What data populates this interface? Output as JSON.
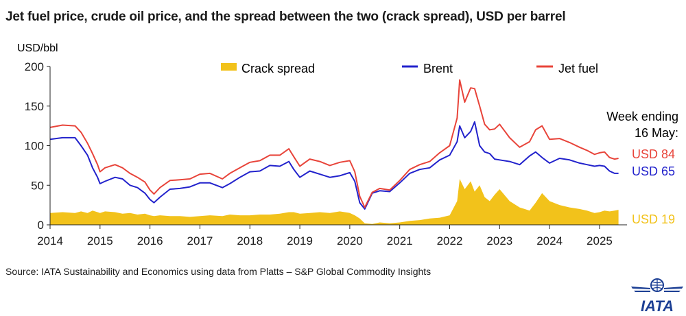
{
  "title": "Jet fuel price, crude oil price, and the spread between the two (crack spread), USD per barrel",
  "source": "Source: IATA Sustainability and Economics using data from Platts – S&P Global Commodity Insights",
  "logo_text": "IATA",
  "colors": {
    "crack": "#f2c21b",
    "brent": "#2222cc",
    "jet": "#e8443a",
    "axis": "#222222"
  },
  "chart_data": {
    "type": "line",
    "ylabel": "USD/bbl",
    "ylim": [
      0,
      200
    ],
    "yticks": [
      0,
      50,
      100,
      150,
      200
    ],
    "xlim": [
      2014,
      2025.55
    ],
    "xticks": [
      "2014",
      "2015",
      "2016",
      "2017",
      "2018",
      "2019",
      "2020",
      "2021",
      "2022",
      "2023",
      "2024",
      "2025"
    ],
    "grid": false,
    "legend_position": "top",
    "annotation": {
      "line1": "Week ending",
      "line2": "16 May:"
    },
    "end_labels": {
      "jet": "USD 84",
      "brent": "USD 65",
      "crack": "USD 19"
    },
    "x": [
      2014.0,
      2014.25,
      2014.5,
      2014.62,
      2014.75,
      2014.85,
      2014.95,
      2015.0,
      2015.1,
      2015.3,
      2015.45,
      2015.6,
      2015.75,
      2015.9,
      2016.0,
      2016.08,
      2016.2,
      2016.4,
      2016.6,
      2016.8,
      2017.0,
      2017.2,
      2017.45,
      2017.6,
      2017.8,
      2018.0,
      2018.2,
      2018.4,
      2018.6,
      2018.78,
      2018.88,
      2019.0,
      2019.2,
      2019.4,
      2019.6,
      2019.8,
      2020.0,
      2020.1,
      2020.2,
      2020.3,
      2020.45,
      2020.6,
      2020.8,
      2021.0,
      2021.2,
      2021.4,
      2021.6,
      2021.8,
      2022.0,
      2022.15,
      2022.2,
      2022.3,
      2022.42,
      2022.5,
      2022.6,
      2022.7,
      2022.8,
      2022.9,
      2023.0,
      2023.2,
      2023.4,
      2023.6,
      2023.72,
      2023.85,
      2024.0,
      2024.2,
      2024.4,
      2024.6,
      2024.75,
      2024.9,
      2025.0,
      2025.1,
      2025.2,
      2025.3,
      2025.38
    ],
    "series": [
      {
        "name": "Crack spread",
        "kind": "area",
        "values": [
          15,
          16,
          15,
          17,
          15,
          18,
          16,
          15,
          17,
          16,
          14,
          15,
          13,
          14,
          12,
          11,
          12,
          11,
          11,
          10,
          11,
          12,
          11,
          13,
          12,
          12,
          13,
          13,
          14,
          16,
          16,
          14,
          15,
          16,
          15,
          17,
          15,
          12,
          8,
          2,
          1,
          3,
          2,
          3,
          5,
          6,
          8,
          9,
          12,
          30,
          58,
          45,
          55,
          42,
          50,
          35,
          30,
          38,
          45,
          30,
          22,
          18,
          28,
          40,
          30,
          25,
          22,
          20,
          18,
          15,
          16,
          18,
          17,
          18,
          19
        ]
      },
      {
        "name": "Brent",
        "kind": "line",
        "values": [
          108,
          110,
          110,
          100,
          88,
          72,
          60,
          52,
          55,
          60,
          58,
          50,
          47,
          40,
          32,
          28,
          35,
          45,
          46,
          48,
          53,
          53,
          47,
          52,
          60,
          67,
          68,
          75,
          74,
          80,
          70,
          60,
          68,
          64,
          60,
          62,
          66,
          55,
          28,
          20,
          40,
          43,
          42,
          53,
          65,
          70,
          72,
          82,
          88,
          105,
          125,
          110,
          118,
          130,
          100,
          92,
          90,
          83,
          82,
          80,
          76,
          87,
          92,
          85,
          78,
          84,
          82,
          78,
          76,
          74,
          75,
          74,
          68,
          65,
          65
        ]
      },
      {
        "name": "Jet fuel",
        "kind": "line",
        "values": [
          123,
          126,
          125,
          117,
          103,
          90,
          76,
          67,
          72,
          76,
          72,
          65,
          60,
          54,
          44,
          39,
          47,
          56,
          57,
          58,
          64,
          65,
          58,
          65,
          72,
          79,
          81,
          88,
          88,
          96,
          86,
          74,
          83,
          80,
          75,
          79,
          81,
          67,
          36,
          22,
          41,
          46,
          44,
          56,
          70,
          76,
          80,
          91,
          100,
          135,
          183,
          155,
          173,
          172,
          150,
          127,
          120,
          121,
          127,
          110,
          98,
          105,
          120,
          125,
          108,
          109,
          104,
          98,
          94,
          89,
          91,
          92,
          85,
          83,
          84
        ]
      }
    ]
  }
}
